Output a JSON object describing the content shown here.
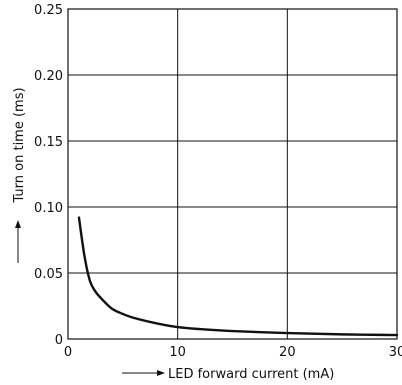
{
  "chart_data": {
    "type": "line",
    "xlabel": "LED forward current (mA)",
    "ylabel": "Turn on time (ms)",
    "xlim": [
      0,
      30
    ],
    "ylim": [
      0,
      0.25
    ],
    "x_ticks": [
      "0",
      "10",
      "20",
      "30"
    ],
    "y_ticks": [
      "0",
      "0.05",
      "0.10",
      "0.15",
      "0.20",
      "0.25"
    ],
    "grid": true,
    "series": [
      {
        "x": [
          1,
          1.5,
          2,
          2.5,
          3,
          4,
          5,
          6,
          8,
          10,
          12,
          15,
          20,
          25,
          30
        ],
        "values": [
          0.092,
          0.063,
          0.044,
          0.036,
          0.031,
          0.023,
          0.019,
          0.016,
          0.012,
          0.009,
          0.0075,
          0.006,
          0.0045,
          0.0035,
          0.003
        ]
      }
    ],
    "colors": {
      "line": "#111111",
      "grid": "#111111",
      "frame": "#111111"
    }
  }
}
